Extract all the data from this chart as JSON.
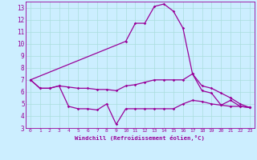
{
  "xlabel": "Windchill (Refroidissement éolien,°C)",
  "x": [
    0,
    1,
    2,
    3,
    4,
    5,
    6,
    7,
    8,
    9,
    10,
    11,
    12,
    13,
    14,
    15,
    16,
    17,
    18,
    19,
    20,
    21,
    22,
    23
  ],
  "line_high": [
    7.0,
    null,
    null,
    null,
    null,
    null,
    null,
    null,
    null,
    null,
    10.2,
    11.7,
    11.7,
    13.1,
    13.3,
    12.7,
    11.3,
    7.5,
    6.1,
    5.9,
    4.9,
    5.3,
    4.8,
    4.7
  ],
  "line_mid": [
    7.0,
    6.3,
    6.3,
    6.5,
    6.4,
    6.3,
    6.3,
    6.2,
    6.2,
    6.1,
    6.5,
    6.6,
    6.8,
    7.0,
    7.0,
    7.0,
    7.0,
    7.5,
    6.5,
    6.3,
    5.9,
    5.5,
    5.0,
    4.7
  ],
  "line_low": [
    7.0,
    6.3,
    6.3,
    6.5,
    4.8,
    4.6,
    4.6,
    4.5,
    5.0,
    3.3,
    4.6,
    4.6,
    4.6,
    4.6,
    4.6,
    4.6,
    5.0,
    5.3,
    5.2,
    5.0,
    4.9,
    4.8,
    4.8,
    4.7
  ],
  "ylim": [
    3,
    13.5
  ],
  "xlim": [
    -0.5,
    23.5
  ],
  "yticks": [
    3,
    4,
    5,
    6,
    7,
    8,
    9,
    10,
    11,
    12,
    13
  ],
  "xticks": [
    0,
    1,
    2,
    3,
    4,
    5,
    6,
    7,
    8,
    9,
    10,
    11,
    12,
    13,
    14,
    15,
    16,
    17,
    18,
    19,
    20,
    21,
    22,
    23
  ],
  "line_color": "#990099",
  "bg_color": "#cceeff",
  "grid_color": "#aadddd"
}
